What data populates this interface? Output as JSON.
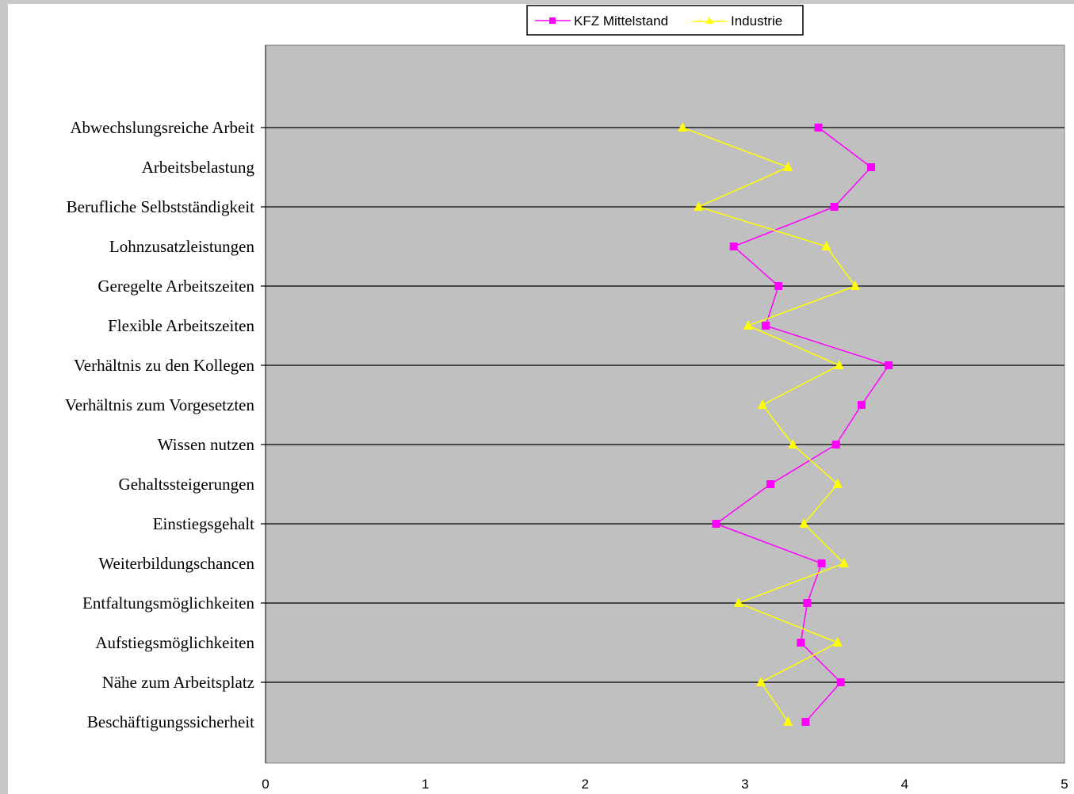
{
  "chart_data": {
    "type": "line",
    "orientation": "horizontal",
    "title": "",
    "xlabel": "",
    "ylabel": "",
    "xlim": [
      0,
      5
    ],
    "x_ticks": [
      "0",
      "1",
      "2",
      "3",
      "4",
      "5"
    ],
    "plot_background": "#c0c0c0",
    "grid": "horizontal lines at alternate categories",
    "legend_position": "top-center",
    "categories": [
      "Abwechslungsreiche Arbeit",
      "Arbeitsbelastung",
      "Berufliche Selbstständigkeit",
      "Lohnzusatzleistungen",
      "Geregelte Arbeitszeiten",
      "Flexible Arbeitszeiten",
      "Verhältnis zu den Kollegen",
      "Verhältnis zum Vorgesetzten",
      "Wissen nutzen",
      "Gehaltssteigerungen",
      "Einstiegsgehalt",
      "Weiterbildungschancen",
      "Entfaltungsmöglichkeiten",
      "Aufstiegsmöglichkeiten",
      "Nähe zum Arbeitsplatz",
      "Beschäftigungssicherheit"
    ],
    "series": [
      {
        "name": "KFZ Mittelstand",
        "color": "#ff00ff",
        "marker": "square",
        "values": [
          3.46,
          3.79,
          3.56,
          2.93,
          3.21,
          3.13,
          3.9,
          3.73,
          3.57,
          3.16,
          2.82,
          3.48,
          3.39,
          3.35,
          3.6,
          3.38
        ]
      },
      {
        "name": "Industrie",
        "color": "#ffff00",
        "marker": "triangle",
        "values": [
          2.61,
          3.27,
          2.71,
          3.51,
          3.69,
          3.02,
          3.59,
          3.11,
          3.3,
          3.58,
          3.37,
          3.62,
          2.96,
          3.58,
          3.1,
          3.27
        ]
      }
    ]
  }
}
